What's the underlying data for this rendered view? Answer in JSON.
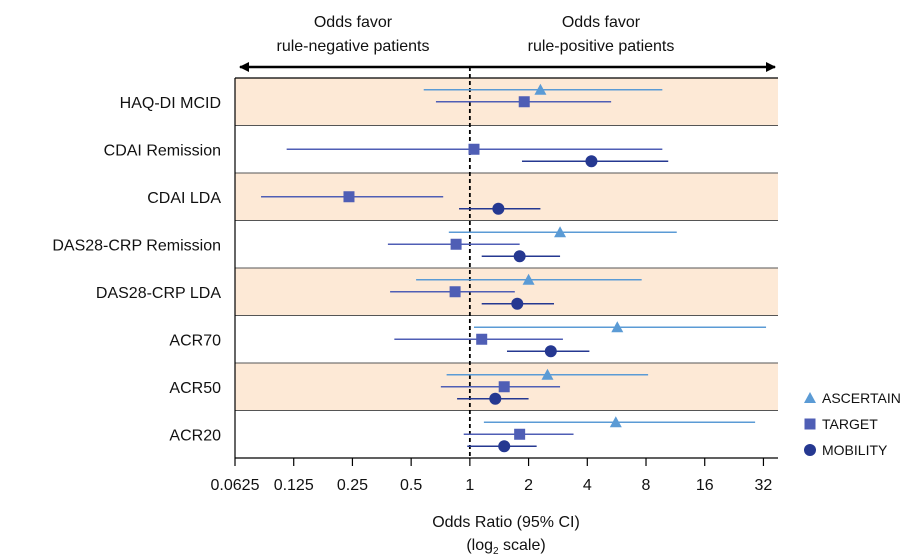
{
  "chart_data": {
    "type": "forest",
    "scale": "log2",
    "xlabel": "Odds Ratio (95% CI)",
    "xlabel_sub_pre": "(log",
    "xlabel_sub_base": "2",
    "xlabel_sub_post": " scale)",
    "header_left": [
      "Odds favor",
      "rule-negative patients"
    ],
    "header_right": [
      "Odds favor",
      "rule-positive patients"
    ],
    "reference_line": 1,
    "xlim": [
      0.0625,
      38
    ],
    "ticks": [
      0.0625,
      0.125,
      0.25,
      0.5,
      1,
      2,
      4,
      8,
      16,
      32
    ],
    "tick_labels": [
      "0.0625",
      "0.125",
      "0.25",
      "0.5",
      "1",
      "2",
      "4",
      "8",
      "16",
      "32"
    ],
    "shaded_rows": [
      true,
      false,
      true,
      false,
      true,
      false,
      true,
      false
    ],
    "colors": {
      "band": "#fde9d6",
      "ascertain": "#5b9bd5",
      "target": "#4f5eb5",
      "mobility": "#253891"
    },
    "categories": [
      "HAQ-DI MCID",
      "CDAI Remission",
      "CDAI LDA",
      "DAS28-CRP Remission",
      "DAS28-CRP LDA",
      "ACR70",
      "ACR50",
      "ACR20"
    ],
    "series": [
      {
        "name": "ASCERTAIN",
        "marker": "triangle",
        "offset": -1,
        "points": [
          {
            "category": "HAQ-DI MCID",
            "or": 2.3,
            "lo": 0.58,
            "hi": 9.7
          },
          {
            "category": "DAS28-CRP Remission",
            "or": 2.9,
            "lo": 0.78,
            "hi": 11.5
          },
          {
            "category": "DAS28-CRP LDA",
            "or": 2.0,
            "lo": 0.53,
            "hi": 7.6
          },
          {
            "category": "ACR70",
            "or": 5.7,
            "lo": 1.05,
            "hi": 33.0
          },
          {
            "category": "ACR50",
            "or": 2.5,
            "lo": 0.76,
            "hi": 8.2
          },
          {
            "category": "ACR20",
            "or": 5.6,
            "lo": 1.18,
            "hi": 29.0
          }
        ]
      },
      {
        "name": "TARGET",
        "marker": "square",
        "offset": 0,
        "points": [
          {
            "category": "HAQ-DI MCID",
            "or": 1.9,
            "lo": 0.67,
            "hi": 5.3
          },
          {
            "category": "CDAI Remission",
            "or": 1.05,
            "lo": 0.115,
            "hi": 9.7
          },
          {
            "category": "CDAI LDA",
            "or": 0.24,
            "lo": 0.085,
            "hi": 0.73
          },
          {
            "category": "DAS28-CRP Remission",
            "or": 0.85,
            "lo": 0.38,
            "hi": 1.8
          },
          {
            "category": "DAS28-CRP LDA",
            "or": 0.84,
            "lo": 0.39,
            "hi": 1.7
          },
          {
            "category": "ACR70",
            "or": 1.15,
            "lo": 0.41,
            "hi": 3.0
          },
          {
            "category": "ACR50",
            "or": 1.5,
            "lo": 0.71,
            "hi": 2.9
          },
          {
            "category": "ACR20",
            "or": 1.8,
            "lo": 0.93,
            "hi": 3.4
          }
        ]
      },
      {
        "name": "MOBILITY",
        "marker": "circle",
        "offset": 1,
        "points": [
          {
            "category": "CDAI Remission",
            "or": 4.2,
            "lo": 1.85,
            "hi": 10.4
          },
          {
            "category": "CDAI LDA",
            "or": 1.4,
            "lo": 0.88,
            "hi": 2.3
          },
          {
            "category": "DAS28-CRP Remission",
            "or": 1.8,
            "lo": 1.15,
            "hi": 2.9
          },
          {
            "category": "DAS28-CRP LDA",
            "or": 1.75,
            "lo": 1.15,
            "hi": 2.7
          },
          {
            "category": "ACR70",
            "or": 2.6,
            "lo": 1.55,
            "hi": 4.1
          },
          {
            "category": "ACR50",
            "or": 1.35,
            "lo": 0.86,
            "hi": 2.0
          },
          {
            "category": "ACR20",
            "or": 1.5,
            "lo": 0.97,
            "hi": 2.2
          }
        ]
      }
    ],
    "legend_position": "right"
  }
}
